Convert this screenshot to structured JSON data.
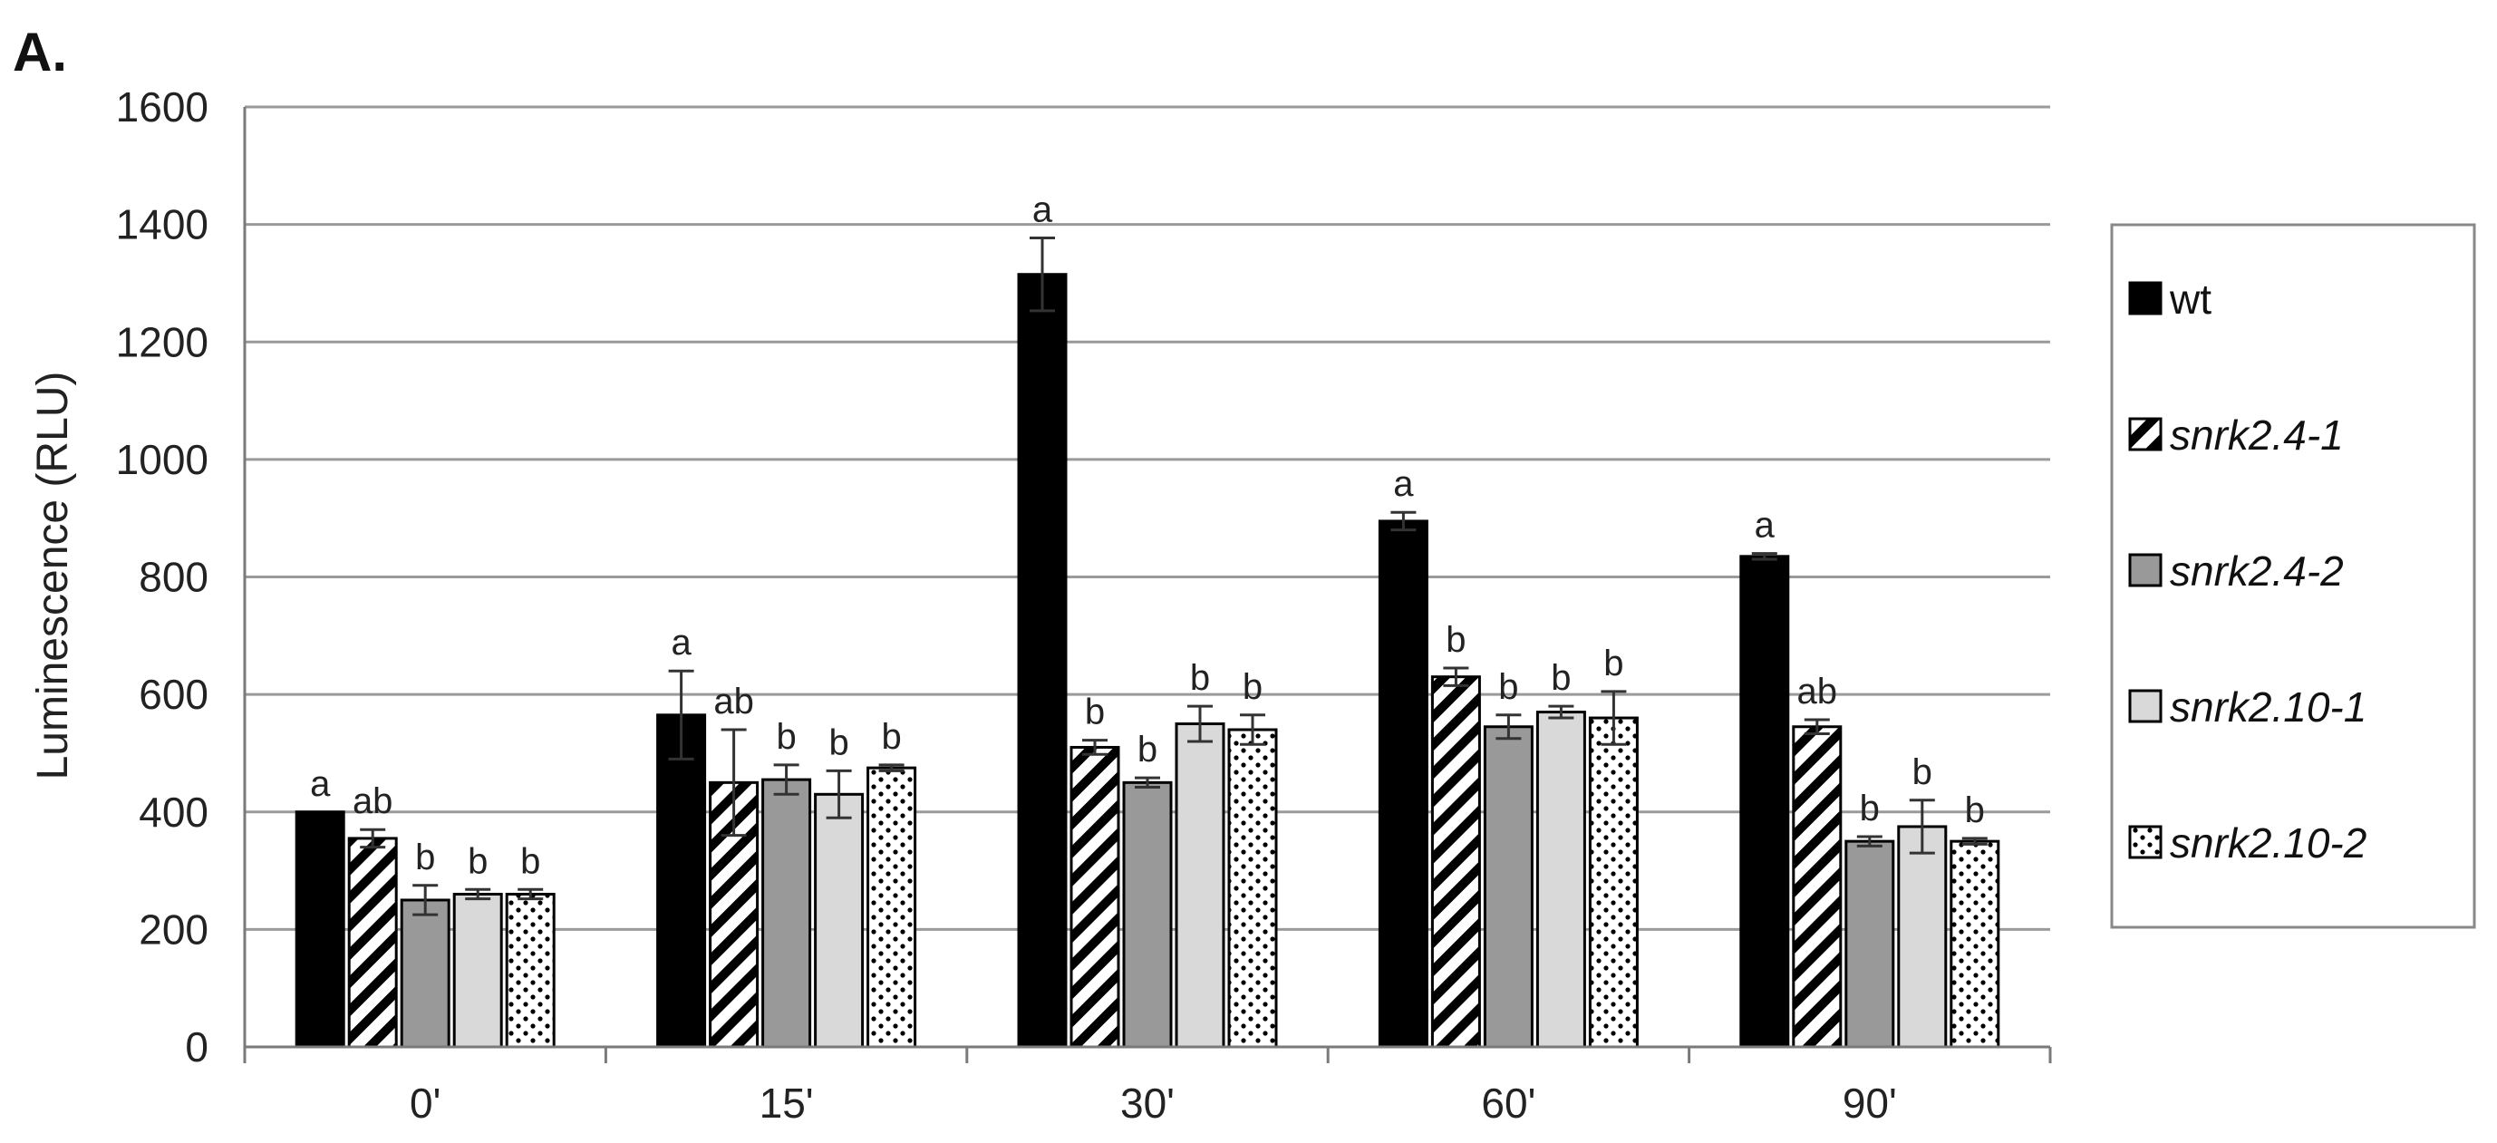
{
  "panel_label": "A.",
  "chart_data": {
    "type": "bar",
    "title": "",
    "xlabel": "",
    "ylabel": "Luminescence (RLU)",
    "ylim": [
      0,
      1600
    ],
    "yticks": [
      0,
      200,
      400,
      600,
      800,
      1000,
      1200,
      1400,
      1600
    ],
    "grid": true,
    "legend_position": "right",
    "categories": [
      "0'",
      "15'",
      "30'",
      "60'",
      "90'"
    ],
    "series": [
      {
        "name": "wt",
        "italic": false,
        "fill": "solid-black",
        "values": [
          400,
          565,
          1315,
          895,
          835
        ],
        "errors": [
          0,
          75,
          62,
          15,
          5
        ],
        "sig": [
          "a",
          "a",
          "a",
          "a",
          "a"
        ]
      },
      {
        "name": "snrk2.4-1",
        "italic": true,
        "fill": "diagonal-hatch",
        "values": [
          355,
          450,
          510,
          630,
          545
        ],
        "errors": [
          15,
          90,
          12,
          15,
          12
        ],
        "sig": [
          "ab",
          "ab",
          "b",
          "b",
          "ab"
        ]
      },
      {
        "name": "snrk2.4-2",
        "italic": true,
        "fill": "solid-gray",
        "values": [
          250,
          455,
          450,
          545,
          350
        ],
        "errors": [
          25,
          25,
          8,
          20,
          8
        ],
        "sig": [
          "b",
          "b",
          "b",
          "b",
          "b"
        ]
      },
      {
        "name": "snrk2.10-1",
        "italic": true,
        "fill": "solid-lightgray",
        "values": [
          260,
          430,
          550,
          570,
          375
        ],
        "errors": [
          8,
          40,
          30,
          10,
          45
        ],
        "sig": [
          "b",
          "b",
          "b",
          "b",
          "b"
        ]
      },
      {
        "name": "snrk2.10-2",
        "italic": true,
        "fill": "dotted",
        "values": [
          260,
          475,
          540,
          560,
          350
        ],
        "errors": [
          8,
          5,
          25,
          45,
          5
        ],
        "sig": [
          "b",
          "b",
          "b",
          "b",
          "b"
        ]
      }
    ]
  },
  "colors": {
    "wt": "#000000",
    "snrk2.4-2": "#999999",
    "snrk2.10-1": "#d9d9d9",
    "grid": "#9a9a9a",
    "axis": "#7a7a7a",
    "legend_border": "#888888"
  }
}
